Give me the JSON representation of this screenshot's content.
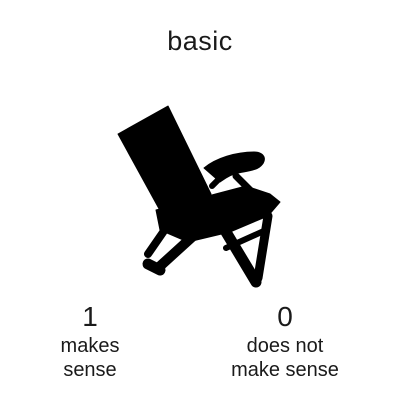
{
  "header": {
    "title": "basic"
  },
  "figure": {
    "icon": "chair-silhouette-icon",
    "color": "#000000"
  },
  "options": [
    {
      "value": "1",
      "label": "makes\nsense"
    },
    {
      "value": "0",
      "label": "does not\nmake sense"
    }
  ]
}
